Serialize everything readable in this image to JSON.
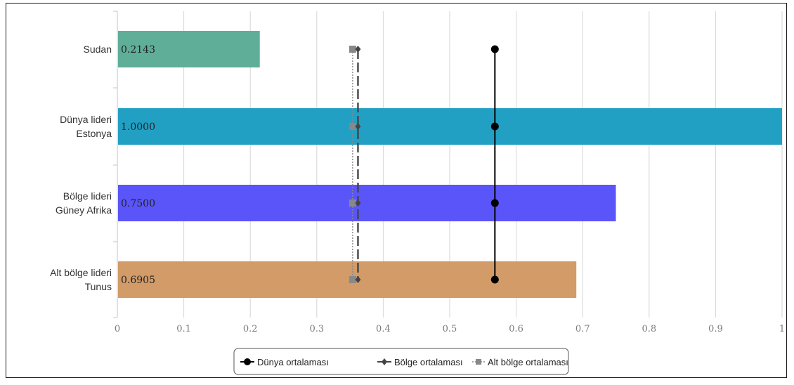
{
  "chart_data": {
    "type": "bar",
    "orientation": "horizontal",
    "categories": [
      [
        "Sudan"
      ],
      [
        "Dünya lideri",
        "Estonya"
      ],
      [
        "Bölge lideri",
        "Güney Afrika"
      ],
      [
        "Alt bölge lideri",
        "Tunus"
      ]
    ],
    "values": [
      0.2143,
      1.0,
      0.75,
      0.6905
    ],
    "value_labels": [
      "0.2143",
      "1.0000",
      "0.7500",
      "0.6905"
    ],
    "bar_colors": [
      "#5fae98",
      "#22a0c4",
      "#5a55f8",
      "#d29b68"
    ],
    "xlim": [
      0,
      1
    ],
    "xticks": [
      0,
      0.1,
      0.2,
      0.3,
      0.4,
      0.5,
      0.6,
      0.7,
      0.8,
      0.9,
      1
    ],
    "xtick_labels": [
      "0",
      "0.1",
      "0.2",
      "0.3",
      "0.4",
      "0.5",
      "0.6",
      "0.7",
      "0.8",
      "0.9",
      "1"
    ],
    "grid": true,
    "reference_lines": [
      {
        "name": "Dünya ortalaması",
        "value": 0.568,
        "color": "#000000",
        "style": "solid",
        "marker": "circle"
      },
      {
        "name": "Bölge ortalaması",
        "value": 0.362,
        "color": "#444444",
        "style": "dashed",
        "marker": "diamond"
      },
      {
        "name": "Alt bölge ortalaması",
        "value": 0.354,
        "color": "#888888",
        "style": "dotted",
        "marker": "square"
      }
    ],
    "legend_position": "bottom"
  }
}
